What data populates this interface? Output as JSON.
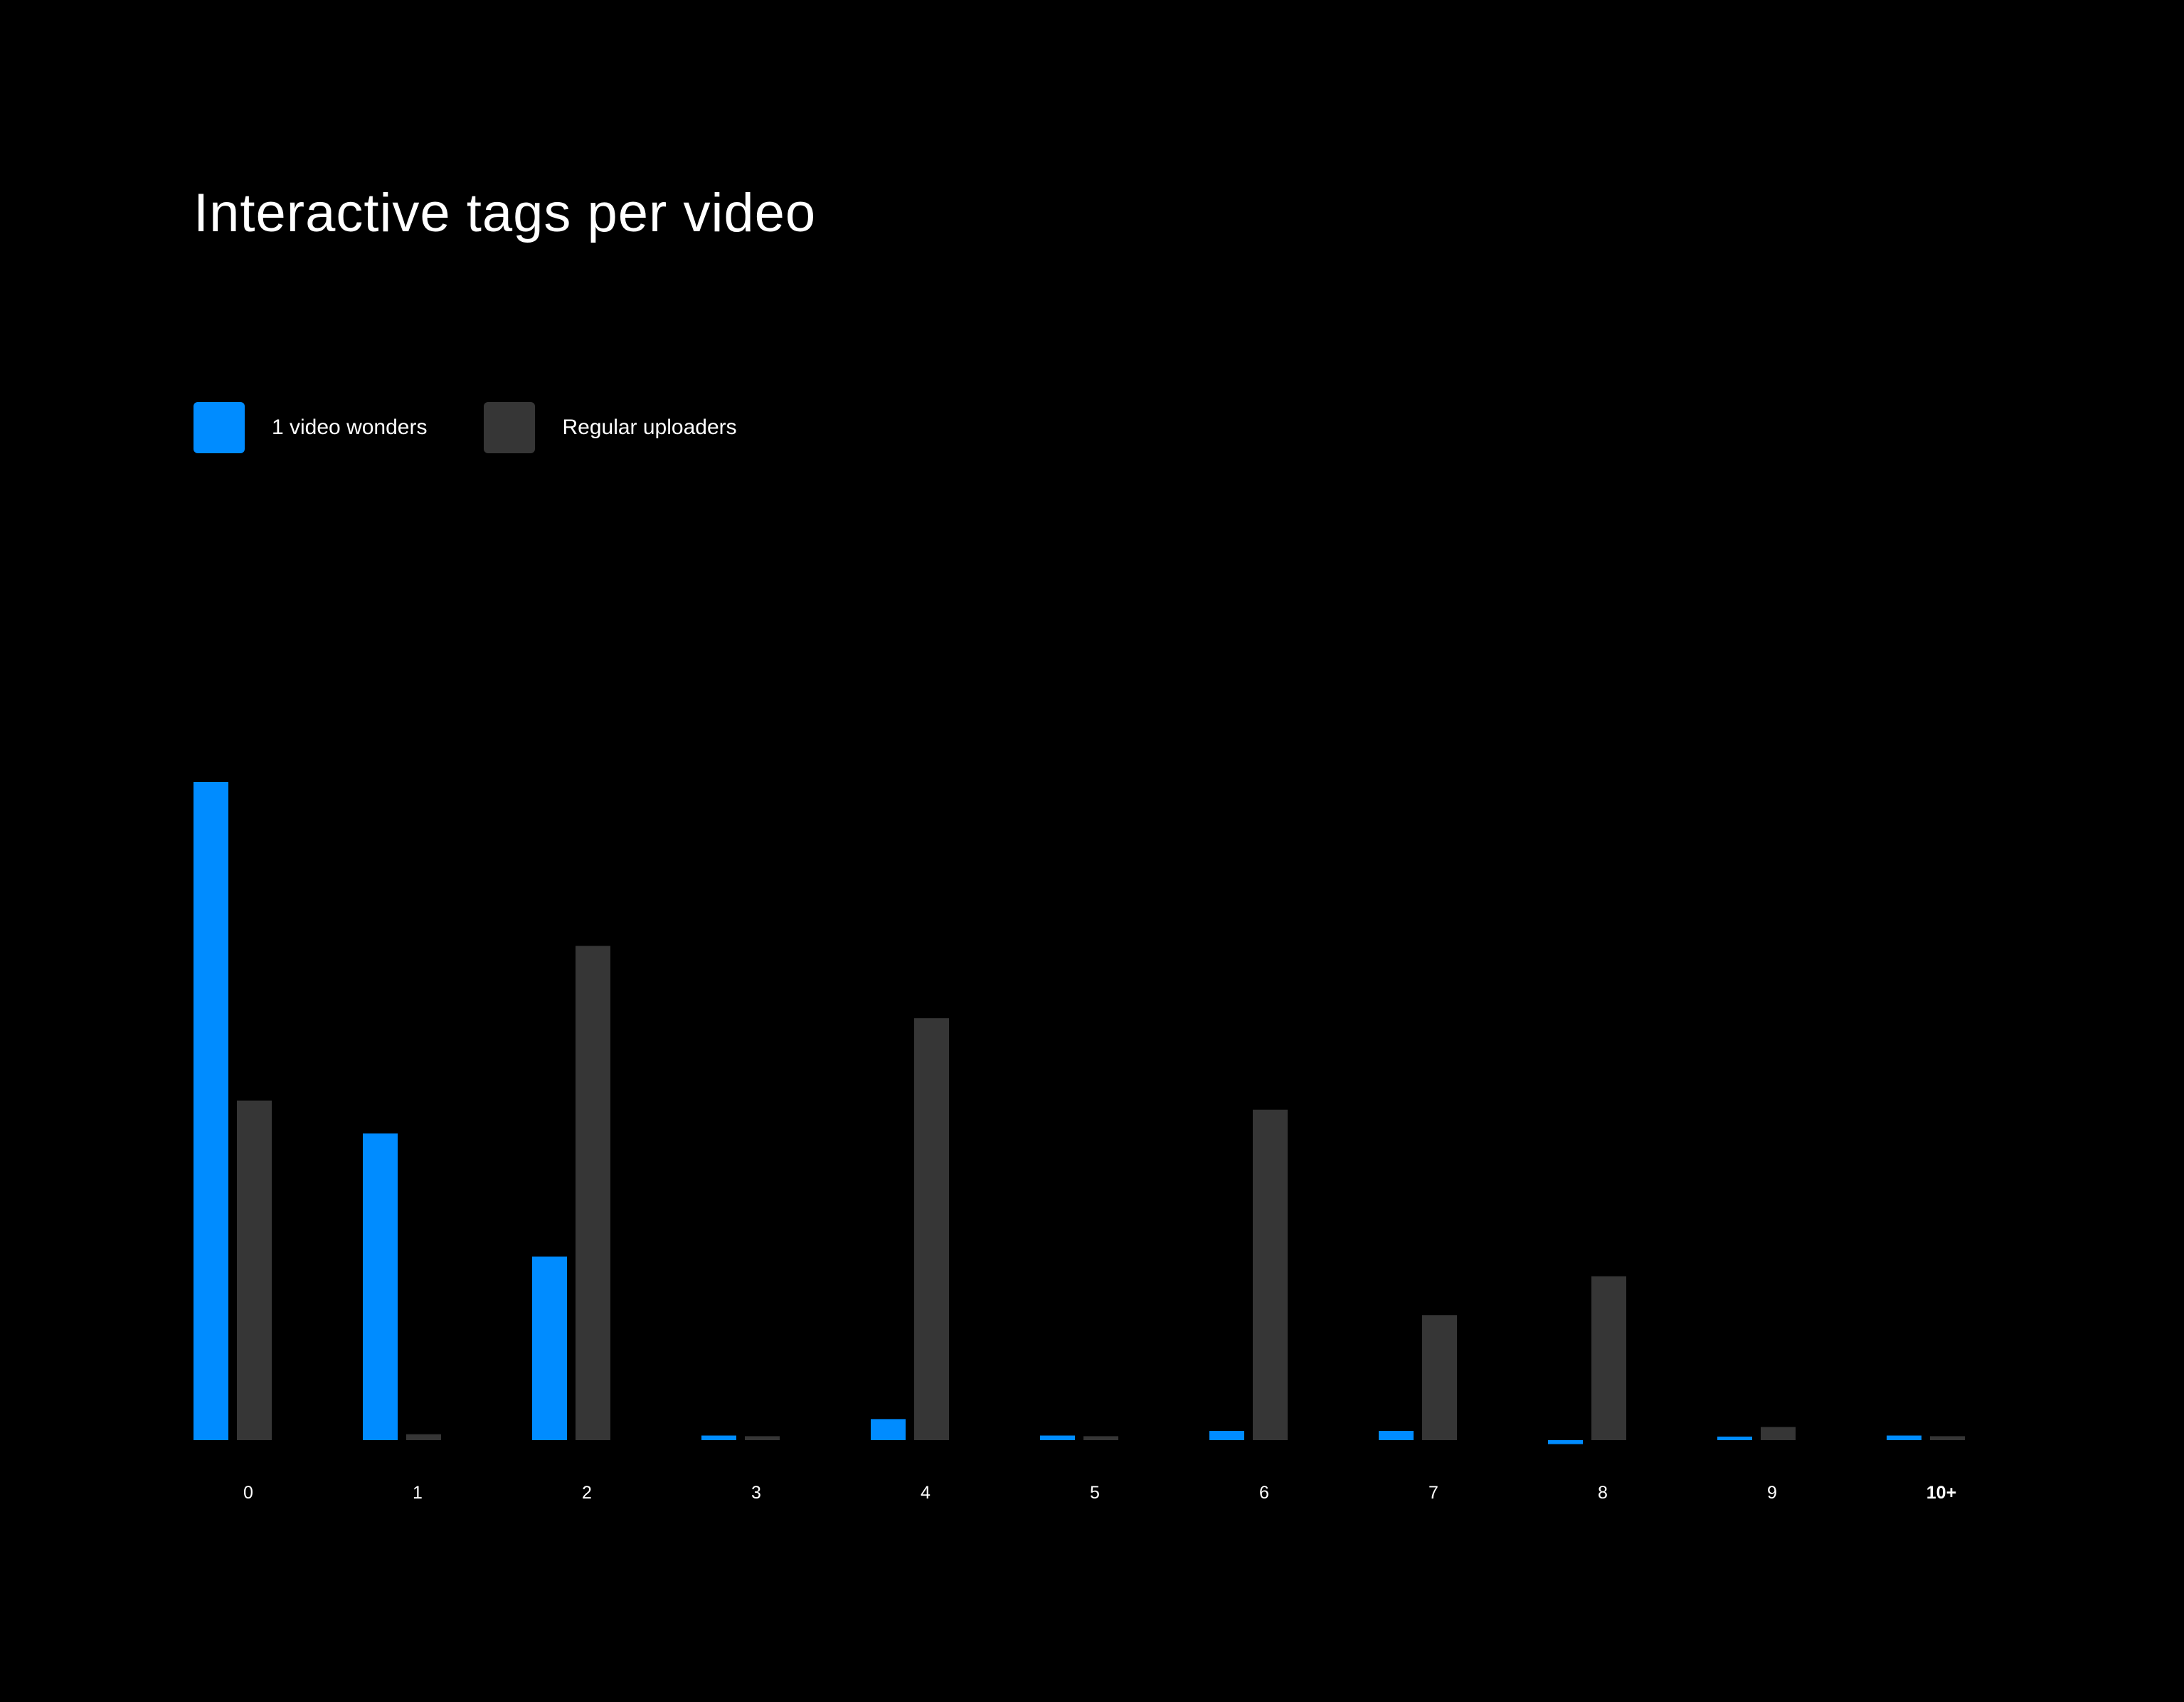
{
  "chart_data": {
    "type": "bar",
    "title": "Interactive tags per video",
    "xlabel": "",
    "ylabel": "",
    "categories": [
      "0",
      "1",
      "2",
      "3",
      "4",
      "5",
      "6",
      "7",
      "8",
      "9",
      "10+"
    ],
    "series": [
      {
        "name": "1 video wonders",
        "color": "#008cff",
        "values": [
          100,
          46.6,
          27.9,
          0.7,
          3.2,
          0.7,
          1.4,
          1.4,
          -0.6,
          0.4,
          0.7
        ]
      },
      {
        "name": "Regular uploaders",
        "color": "#363636",
        "values": [
          51.6,
          0.9,
          75.1,
          0.6,
          64.1,
          0.6,
          50.2,
          19.0,
          24.9,
          2.0,
          0.6
        ]
      }
    ],
    "ylim": [
      0,
      100
    ],
    "grid": false,
    "legend_position": "top-left",
    "bold_tick": "10+"
  }
}
